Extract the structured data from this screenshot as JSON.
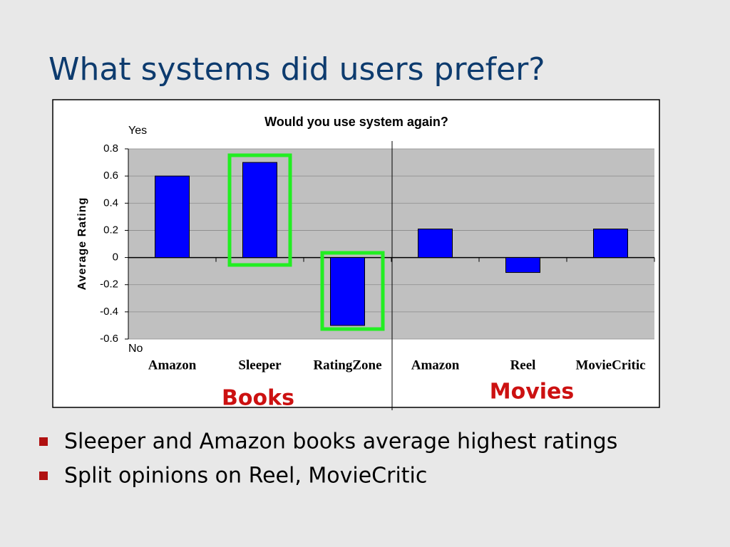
{
  "slide_title": "What systems did users prefer?",
  "bullets": [
    "Sleeper and Amazon books average highest ratings",
    "Split opinions on Reel, MovieCritic"
  ],
  "chart_data": {
    "type": "bar",
    "title": "Would you use system again?",
    "y_label": "Average Rating",
    "y_top_label": "Yes",
    "y_bottom_label": "No",
    "group_labels": [
      "Books",
      "Movies"
    ],
    "categories": [
      "Amazon",
      "Sleeper",
      "RatingZone",
      "Amazon",
      "Reel",
      "MovieCritic"
    ],
    "values": [
      0.6,
      0.7,
      -0.5,
      0.21,
      -0.11,
      0.21
    ],
    "color": "#0000ff",
    "ylim": [
      -0.6,
      0.8
    ],
    "yticks": [
      0.8,
      0.6,
      0.4,
      0.2,
      0,
      -0.2,
      -0.4,
      -0.6
    ],
    "grid": true
  }
}
